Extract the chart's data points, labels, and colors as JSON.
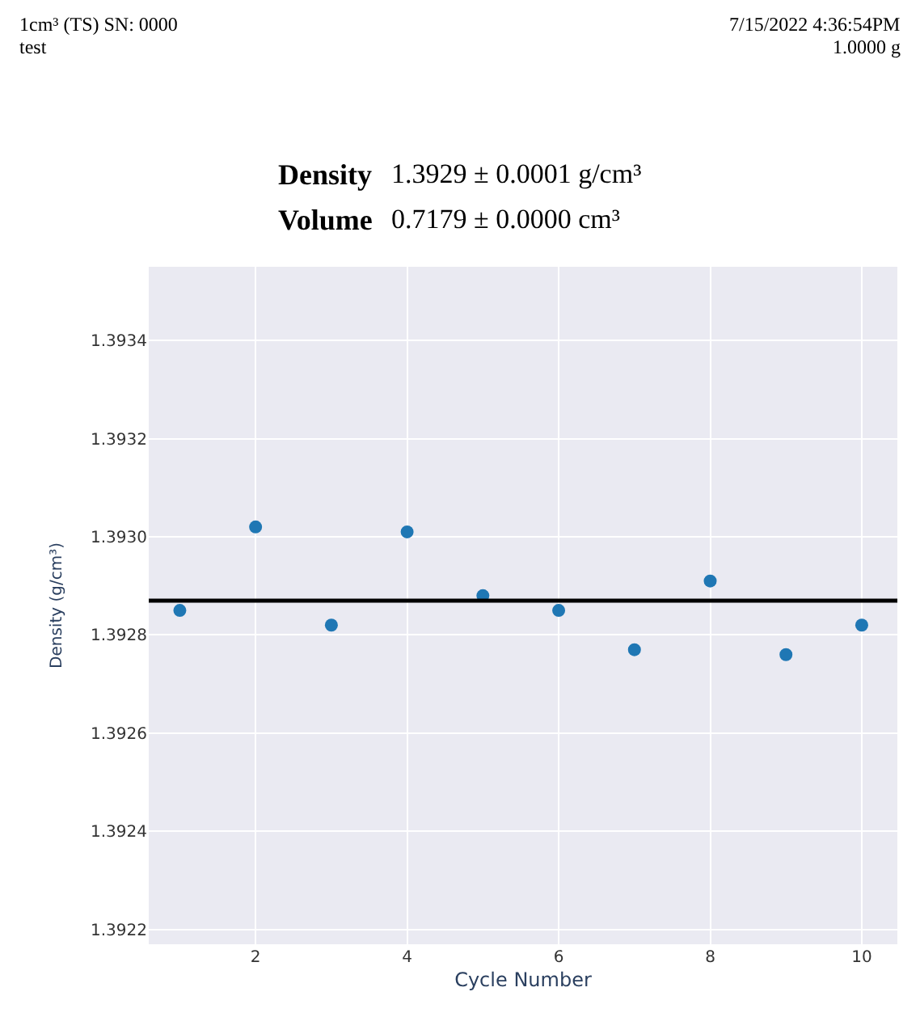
{
  "chart_data": {
    "type": "scatter",
    "xlabel": "Cycle Number",
    "ylabel": "Density (g/cm³)",
    "annotations": [
      "1cm³ (TS) SN: 0000",
      "test",
      "7/15/2022 4:36:54PM",
      "1.0000 g",
      "Density",
      "1.3929 ± 0.0001 g/cm³",
      "Volume",
      "0.7179 ± 0.0000 cm³"
    ],
    "x": [
      1,
      2,
      3,
      4,
      5,
      6,
      7,
      8,
      9,
      10
    ],
    "series": [
      {
        "color": "#1f77b4",
        "values": [
          1.39285,
          1.39302,
          1.39282,
          1.39301,
          1.39288,
          1.39285,
          1.39277,
          1.39291,
          1.39276,
          1.39282
        ]
      }
    ],
    "ref_lines": [
      {
        "axis": "y",
        "value": 1.39287,
        "color": "#000000",
        "line_style": "solid"
      }
    ],
    "xlim": [
      0.59,
      10.47
    ],
    "ylim": [
      1.39217,
      1.39355
    ],
    "xticks": [
      2,
      4,
      6,
      8,
      10
    ],
    "yticks": [
      1.3922,
      1.3924,
      1.3926,
      1.3928,
      {
        "value": 1.393,
        "label": "1.3930"
      },
      1.3932,
      1.3934
    ],
    "grid": true,
    "marker": "circle"
  }
}
